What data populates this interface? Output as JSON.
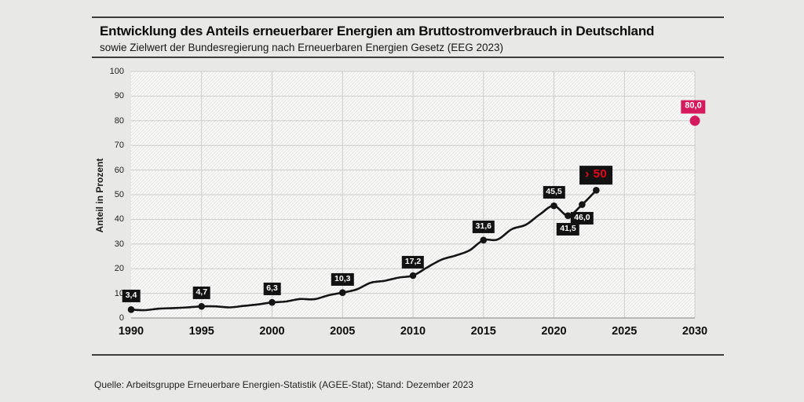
{
  "chart_data": {
    "type": "line",
    "title": "Entwicklung des Anteils erneuerbarer Energien am Bruttostromverbrauch in Deutschland",
    "subtitle": "sowie Zielwert der Bundesregierung nach Erneuerbaren Energien Gesetz (EEG 2023)",
    "source": "Quelle: Arbeitsgruppe Erneuerbare Energien-Statistik (AGEE-Stat); Stand: Dezember 2023",
    "ylabel": "Anteil in Prozent",
    "xlabel": "",
    "ylim": [
      0,
      100
    ],
    "xlim": [
      1990,
      2030
    ],
    "y_ticks": [
      0,
      10,
      20,
      30,
      40,
      50,
      60,
      70,
      80,
      90,
      100
    ],
    "x_ticks": [
      1990,
      1995,
      2000,
      2005,
      2010,
      2015,
      2020,
      2025,
      2030
    ],
    "grid": true,
    "plot_hatched": true,
    "legend": "none",
    "series": [
      {
        "name": "Anteil erneuerbarer Energien am Bruttostromverbrauch",
        "type": "line",
        "color": "#141414",
        "x": [
          1990,
          1991,
          1992,
          1993,
          1994,
          1995,
          1996,
          1997,
          1998,
          1999,
          2000,
          2001,
          2002,
          2003,
          2004,
          2005,
          2006,
          2007,
          2008,
          2009,
          2010,
          2011,
          2012,
          2013,
          2014,
          2015,
          2016,
          2017,
          2018,
          2019,
          2020,
          2021,
          2022,
          2023
        ],
        "y": [
          3.4,
          3.2,
          3.8,
          4.0,
          4.3,
          4.7,
          4.7,
          4.3,
          4.9,
          5.5,
          6.3,
          6.7,
          7.7,
          7.6,
          9.2,
          10.3,
          11.6,
          14.3,
          15.1,
          16.4,
          17.2,
          20.5,
          23.6,
          25.3,
          27.4,
          31.6,
          31.8,
          36.0,
          37.8,
          42.0,
          45.5,
          41.5,
          46.0,
          51.8
        ],
        "marker_x": [
          1990,
          1995,
          2000,
          2005,
          2010,
          2015,
          2020,
          2021,
          2022,
          2023
        ]
      },
      {
        "name": "Zielwert der Bundesregierung (EEG 2023)",
        "type": "scatter",
        "color": "#d4195c",
        "x": [
          2030
        ],
        "y": [
          80.0
        ]
      }
    ],
    "point_labels": [
      {
        "x": 1990,
        "y": 3.4,
        "text": "3,4",
        "placement": "above",
        "style": "black"
      },
      {
        "x": 1995,
        "y": 4.7,
        "text": "4,7",
        "placement": "above",
        "style": "black"
      },
      {
        "x": 2000,
        "y": 6.3,
        "text": "6,3",
        "placement": "above",
        "style": "black"
      },
      {
        "x": 2005,
        "y": 10.3,
        "text": "10,3",
        "placement": "above",
        "style": "black"
      },
      {
        "x": 2010,
        "y": 17.2,
        "text": "17,2",
        "placement": "above",
        "style": "black"
      },
      {
        "x": 2015,
        "y": 31.6,
        "text": "31,6",
        "placement": "above",
        "style": "black"
      },
      {
        "x": 2020,
        "y": 45.5,
        "text": "45,5",
        "placement": "above",
        "style": "black"
      },
      {
        "x": 2021,
        "y": 41.5,
        "text": "41,5",
        "placement": "below",
        "style": "black"
      },
      {
        "x": 2022,
        "y": 46.0,
        "text": "46,0",
        "placement": "below",
        "style": "black"
      },
      {
        "x": 2023,
        "y": 51.8,
        "text": "› 50",
        "placement": "above",
        "style": "black-red"
      },
      {
        "x": 2030,
        "y": 80.0,
        "text": "80,0",
        "placement": "above",
        "style": "pink"
      }
    ]
  },
  "colors": {
    "page_bg": "#e8e8e6",
    "plot_bg": "#ffffff",
    "hatch_stripe": "#e3e3e1",
    "grid": "#cdcdcb",
    "axis": "#a6a6a4",
    "line": "#141414",
    "label_bg": "#121212",
    "label_text": "#ffffff",
    "red_text": "#e8001c",
    "target": "#d4195c",
    "rule": "#3c3c3c"
  }
}
